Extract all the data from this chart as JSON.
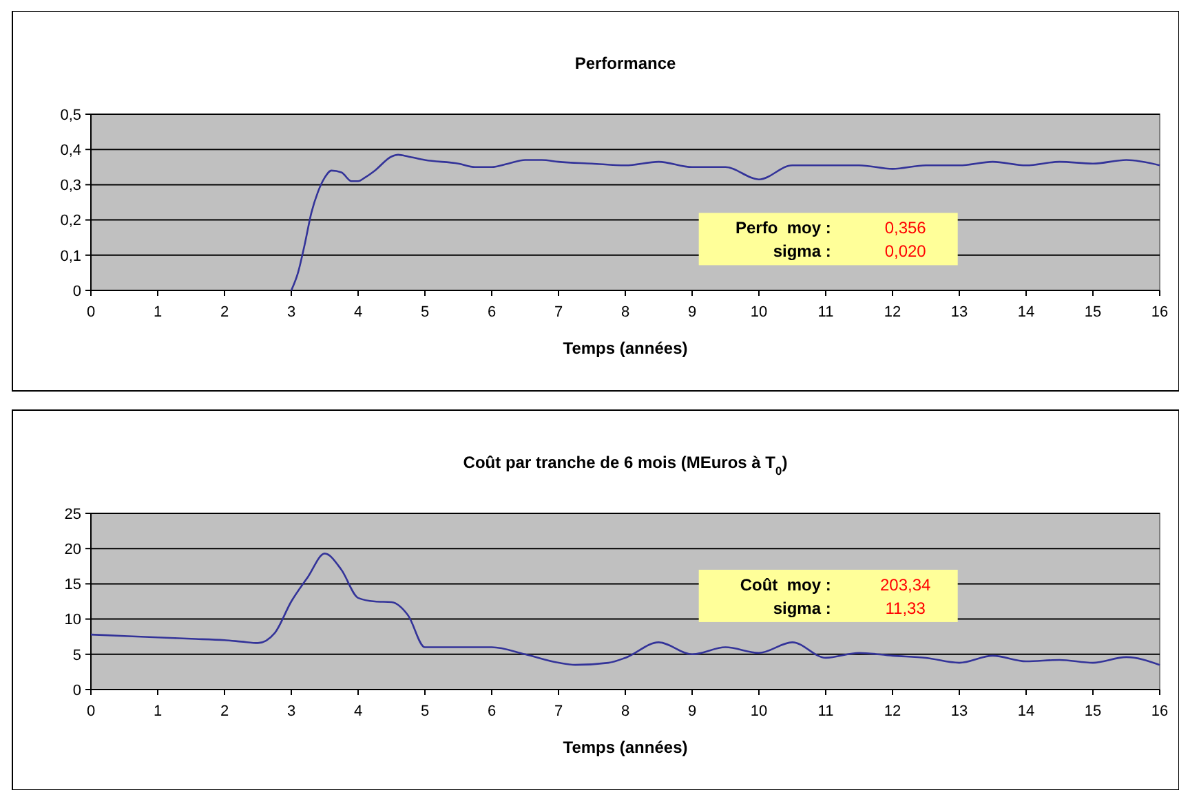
{
  "chart_data": [
    {
      "type": "line",
      "title": "Performance",
      "xlabel": "Temps (années)",
      "x": [
        3,
        3.1,
        3.2,
        3.3,
        3.4,
        3.5,
        3.6,
        3.75,
        3.9,
        4.0,
        4.1,
        4.25,
        4.5,
        4.6,
        4.75,
        5,
        5.5,
        5.75,
        6,
        6.25,
        6.5,
        6.75,
        7,
        7.5,
        8,
        8.5,
        9,
        9.5,
        10,
        10.5,
        11,
        11.5,
        12,
        12.5,
        13,
        13.5,
        14,
        14.5,
        15,
        15.5,
        16
      ],
      "series": [
        {
          "color": "#333399",
          "values": [
            0,
            0.05,
            0.13,
            0.22,
            0.28,
            0.32,
            0.34,
            0.335,
            0.31,
            0.31,
            0.32,
            0.34,
            0.38,
            0.385,
            0.38,
            0.37,
            0.36,
            0.35,
            0.35,
            0.36,
            0.37,
            0.37,
            0.365,
            0.36,
            0.355,
            0.365,
            0.35,
            0.35,
            0.315,
            0.355,
            0.355,
            0.355,
            0.345,
            0.355,
            0.355,
            0.365,
            0.355,
            0.365,
            0.36,
            0.37,
            0.355
          ]
        }
      ],
      "xlim": [
        0,
        16
      ],
      "xticks": [
        0,
        1,
        2,
        3,
        4,
        5,
        6,
        7,
        8,
        9,
        10,
        11,
        12,
        13,
        14,
        15,
        16
      ],
      "ylim": [
        0,
        0.5
      ],
      "yticks": [
        0,
        {
          "value": 0.1,
          "label": "0,1"
        },
        {
          "value": 0.2,
          "label": "0,2"
        },
        {
          "value": 0.3,
          "label": "0,3"
        },
        {
          "value": 0.4,
          "label": "0,4"
        },
        {
          "value": 0.5,
          "label": "0,5"
        }
      ],
      "grid": "y",
      "marker": "none",
      "line_style": "solid",
      "annotations": [
        "Perfo  moy :",
        "0,356",
        "sigma :",
        "0,020"
      ]
    },
    {
      "type": "line",
      "title": "Coût par tranche de 6 mois (MEuros à T$_{0}$)",
      "xlabel": "Temps (années)",
      "x": [
        0,
        0.5,
        1,
        1.5,
        2,
        2.25,
        2.5,
        2.75,
        3,
        3.25,
        3.5,
        3.75,
        4,
        4.25,
        4.5,
        4.75,
        5,
        5.5,
        6,
        6.5,
        7,
        7.25,
        7.75,
        8,
        8.5,
        9,
        9.5,
        10,
        10.5,
        11,
        11.5,
        12,
        12.5,
        13,
        13.5,
        14,
        14.5,
        15,
        15.5,
        16
      ],
      "series": [
        {
          "color": "#333399",
          "values": [
            7.8,
            7.6,
            7.4,
            7.2,
            7,
            6.8,
            6.6,
            8,
            12.5,
            16,
            19.3,
            17,
            13,
            12.5,
            12.4,
            10.5,
            6,
            6,
            6,
            5,
            3.8,
            3.5,
            3.8,
            4.5,
            6.7,
            5,
            6,
            5.2,
            6.7,
            4.5,
            5.2,
            4.8,
            4.5,
            3.8,
            4.8,
            4,
            4.2,
            3.8,
            4.6,
            3.5
          ]
        }
      ],
      "xlim": [
        0,
        16
      ],
      "xticks": [
        0,
        1,
        2,
        3,
        4,
        5,
        6,
        7,
        8,
        9,
        10,
        11,
        12,
        13,
        14,
        15,
        16
      ],
      "ylim": [
        0,
        25
      ],
      "yticks": [
        0,
        5,
        10,
        15,
        20,
        25
      ],
      "grid": "y",
      "marker": "none",
      "line_style": "solid",
      "annotations": [
        "Coût  moy :",
        "203,34",
        "sigma :",
        "11,33"
      ]
    }
  ]
}
